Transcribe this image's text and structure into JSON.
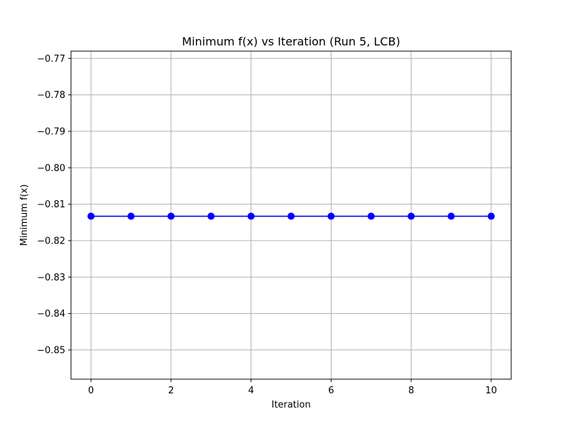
{
  "chart_data": {
    "type": "line",
    "title": "Minimum f(x) vs Iteration (Run 5, LCB)",
    "xlabel": "Iteration",
    "ylabel": "Minimum f(x)",
    "xlim": [
      -0.5,
      10.5
    ],
    "ylim": [
      -0.858,
      -0.768
    ],
    "x_ticks": [
      0,
      2,
      4,
      6,
      8,
      10
    ],
    "x_tick_labels": [
      "0",
      "2",
      "4",
      "6",
      "8",
      "10"
    ],
    "y_ticks": [
      -0.85,
      -0.84,
      -0.83,
      -0.82,
      -0.81,
      -0.8,
      -0.79,
      -0.78,
      -0.77
    ],
    "y_tick_labels": [
      "−0.85",
      "−0.84",
      "−0.83",
      "−0.82",
      "−0.81",
      "−0.80",
      "−0.79",
      "−0.78",
      "−0.77"
    ],
    "grid": true,
    "series": [
      {
        "color": "#0000ff",
        "marker": "circle",
        "x": [
          0,
          1,
          2,
          3,
          4,
          5,
          6,
          7,
          8,
          9,
          10
        ],
        "y": [
          -0.8133,
          -0.8133,
          -0.8133,
          -0.8133,
          -0.8133,
          -0.8133,
          -0.8133,
          -0.8133,
          -0.8133,
          -0.8133,
          -0.8133
        ]
      }
    ]
  }
}
